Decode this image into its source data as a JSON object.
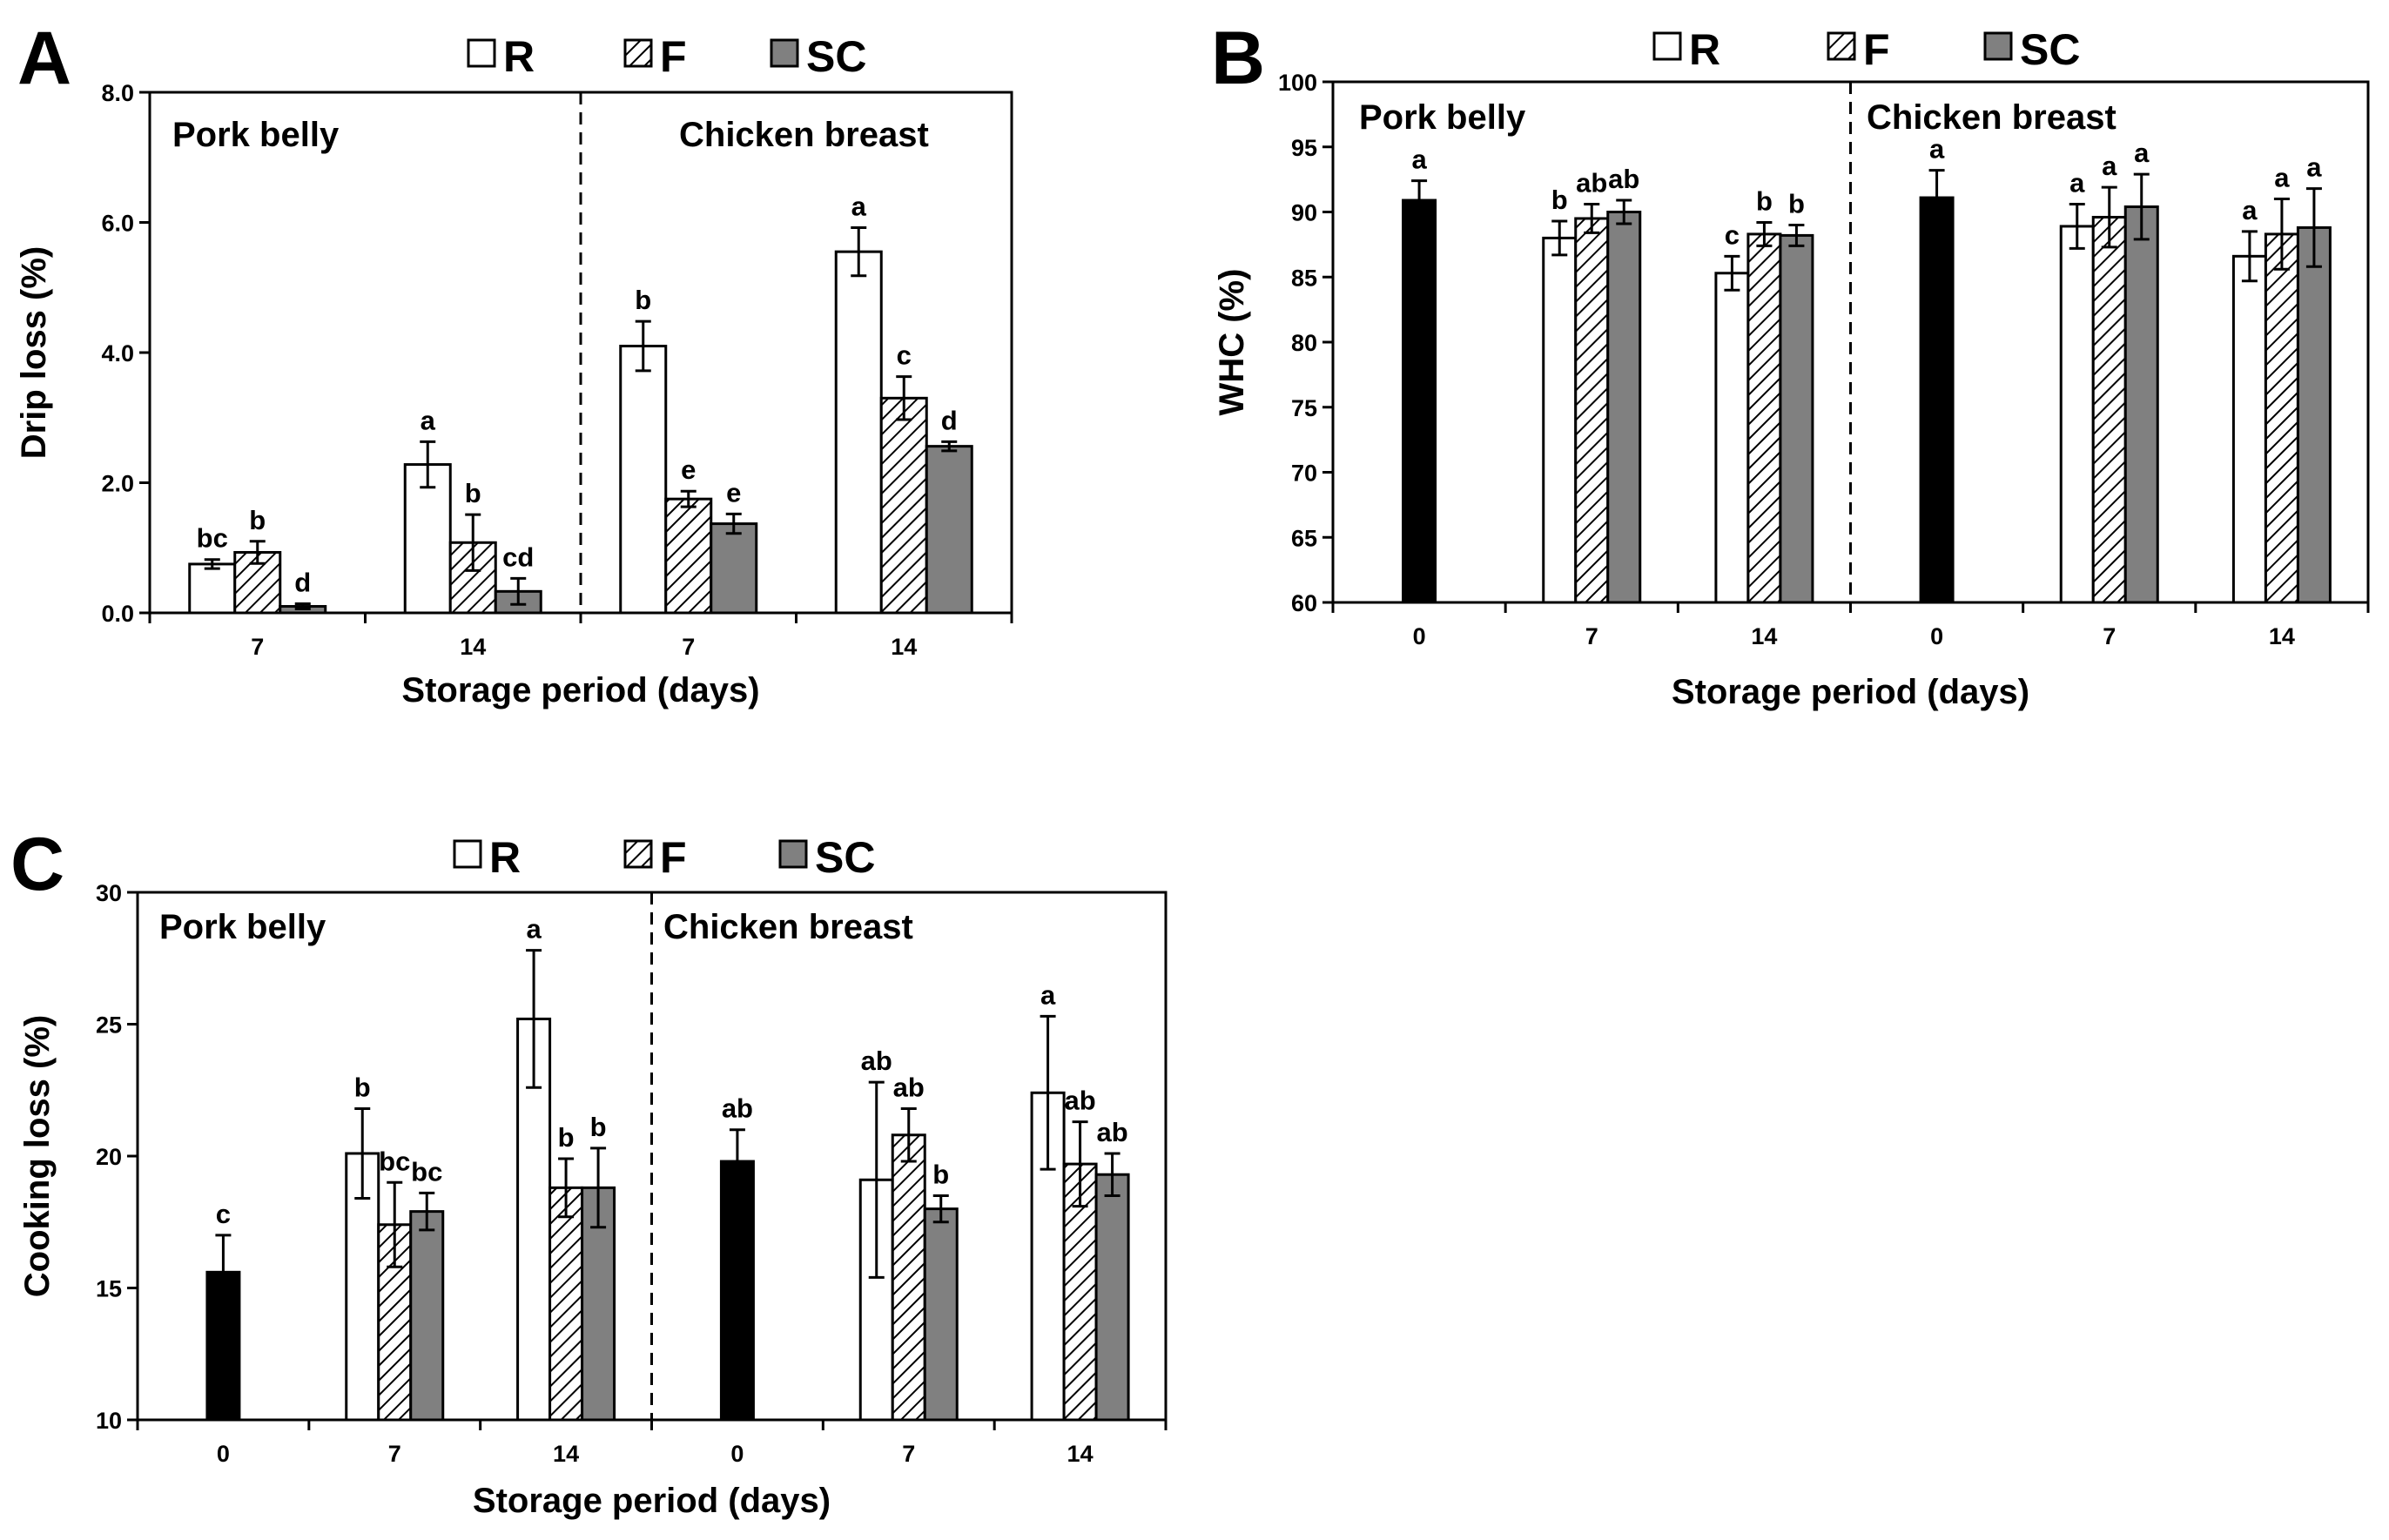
{
  "figure": {
    "colors": {
      "R": "#ffffff",
      "F": "hatch",
      "SC": "#808080",
      "control": "#000000"
    }
  },
  "chart_data": [
    {
      "panel": "A",
      "type": "bar",
      "legend": [
        "R",
        "F",
        "SC"
      ],
      "ylabel": "Drip loss (%)",
      "xlabel": "Storage period (days)",
      "ylim": [
        0,
        8
      ],
      "yticks": [
        0,
        2,
        4,
        6,
        8
      ],
      "ytick_labels": [
        "0.0",
        "2.0",
        "4.0",
        "6.0",
        "8.0"
      ],
      "sections": [
        "Pork belly",
        "Chicken breast"
      ],
      "groups": [
        {
          "section": 0,
          "label": "7",
          "bars": [
            {
              "series": "R",
              "value": 0.75,
              "err": 0.07,
              "letter": "bc"
            },
            {
              "series": "F",
              "value": 0.93,
              "err": 0.17,
              "letter": "b"
            },
            {
              "series": "SC",
              "value": 0.1,
              "err": 0.04,
              "letter": "d"
            }
          ]
        },
        {
          "section": 0,
          "label": "14",
          "bars": [
            {
              "series": "R",
              "value": 2.28,
              "err": 0.35,
              "letter": "a"
            },
            {
              "series": "F",
              "value": 1.08,
              "err": 0.43,
              "letter": "b"
            },
            {
              "series": "SC",
              "value": 0.33,
              "err": 0.2,
              "letter": "cd"
            }
          ]
        },
        {
          "section": 1,
          "label": "7",
          "bars": [
            {
              "series": "R",
              "value": 4.1,
              "err": 0.38,
              "letter": "b"
            },
            {
              "series": "F",
              "value": 1.75,
              "err": 0.12,
              "letter": "e"
            },
            {
              "series": "SC",
              "value": 1.37,
              "err": 0.15,
              "letter": "e"
            }
          ]
        },
        {
          "section": 1,
          "label": "14",
          "bars": [
            {
              "series": "R",
              "value": 5.55,
              "err": 0.37,
              "letter": "a"
            },
            {
              "series": "F",
              "value": 3.3,
              "err": 0.33,
              "letter": "c"
            },
            {
              "series": "SC",
              "value": 2.56,
              "err": 0.07,
              "letter": "d"
            }
          ]
        }
      ]
    },
    {
      "panel": "B",
      "type": "bar",
      "legend": [
        "R",
        "F",
        "SC"
      ],
      "ylabel": "WHC  (%)",
      "xlabel": "Storage period (days)",
      "ylim": [
        60,
        100
      ],
      "yticks": [
        60,
        65,
        70,
        75,
        80,
        85,
        90,
        95,
        100
      ],
      "ytick_labels": [
        "60",
        "65",
        "70",
        "75",
        "80",
        "85",
        "90",
        "95",
        "100"
      ],
      "sections": [
        "Pork belly",
        "Chicken breast"
      ],
      "groups": [
        {
          "section": 0,
          "label": "0",
          "bars": [
            {
              "series": "control",
              "value": 90.9,
              "err": 1.5,
              "letter": "a"
            }
          ]
        },
        {
          "section": 0,
          "label": "7",
          "bars": [
            {
              "series": "R",
              "value": 88.0,
              "err": 1.3,
              "letter": "b"
            },
            {
              "series": "F",
              "value": 89.5,
              "err": 1.1,
              "letter": "ab"
            },
            {
              "series": "SC",
              "value": 90.0,
              "err": 0.9,
              "letter": "ab"
            }
          ]
        },
        {
          "section": 0,
          "label": "14",
          "bars": [
            {
              "series": "R",
              "value": 85.3,
              "err": 1.3,
              "letter": "c"
            },
            {
              "series": "F",
              "value": 88.3,
              "err": 0.9,
              "letter": "b"
            },
            {
              "series": "SC",
              "value": 88.2,
              "err": 0.8,
              "letter": "b"
            }
          ]
        },
        {
          "section": 1,
          "label": "0",
          "bars": [
            {
              "series": "control",
              "value": 91.1,
              "err": 2.1,
              "letter": "a"
            }
          ]
        },
        {
          "section": 1,
          "label": "7",
          "bars": [
            {
              "series": "R",
              "value": 88.9,
              "err": 1.7,
              "letter": "a"
            },
            {
              "series": "F",
              "value": 89.6,
              "err": 2.3,
              "letter": "a"
            },
            {
              "series": "SC",
              "value": 90.4,
              "err": 2.5,
              "letter": "a"
            }
          ]
        },
        {
          "section": 1,
          "label": "14",
          "bars": [
            {
              "series": "R",
              "value": 86.6,
              "err": 1.9,
              "letter": "a"
            },
            {
              "series": "F",
              "value": 88.3,
              "err": 2.7,
              "letter": "a"
            },
            {
              "series": "SC",
              "value": 88.8,
              "err": 3.0,
              "letter": "a"
            }
          ]
        }
      ]
    },
    {
      "panel": "C",
      "type": "bar",
      "legend": [
        "R",
        "F",
        "SC"
      ],
      "ylabel": "Cooking loss (%)",
      "xlabel": "Storage period (days)",
      "ylim": [
        10,
        30
      ],
      "yticks": [
        10,
        15,
        20,
        25,
        30
      ],
      "ytick_labels": [
        "10",
        "15",
        "20",
        "25",
        "30"
      ],
      "sections": [
        "Pork belly",
        "Chicken breast"
      ],
      "groups": [
        {
          "section": 0,
          "label": "0",
          "bars": [
            {
              "series": "control",
              "value": 15.6,
              "err": 1.4,
              "letter": "c"
            }
          ]
        },
        {
          "section": 0,
          "label": "7",
          "bars": [
            {
              "series": "R",
              "value": 20.1,
              "err": 1.7,
              "letter": "b"
            },
            {
              "series": "F",
              "value": 17.4,
              "err": 1.6,
              "letter": "bc"
            },
            {
              "series": "SC",
              "value": 17.9,
              "err": 0.7,
              "letter": "bc"
            }
          ]
        },
        {
          "section": 0,
          "label": "14",
          "bars": [
            {
              "series": "R",
              "value": 25.2,
              "err": 2.6,
              "letter": "a"
            },
            {
              "series": "F",
              "value": 18.8,
              "err": 1.1,
              "letter": "b"
            },
            {
              "series": "SC",
              "value": 18.8,
              "err": 1.5,
              "letter": "b"
            }
          ]
        },
        {
          "section": 1,
          "label": "0",
          "bars": [
            {
              "series": "control",
              "value": 19.8,
              "err": 1.2,
              "letter": "ab"
            }
          ]
        },
        {
          "section": 1,
          "label": "7",
          "bars": [
            {
              "series": "R",
              "value": 19.1,
              "err": 3.7,
              "letter": "ab"
            },
            {
              "series": "F",
              "value": 20.8,
              "err": 1.0,
              "letter": "ab"
            },
            {
              "series": "SC",
              "value": 18.0,
              "err": 0.5,
              "letter": "b"
            }
          ]
        },
        {
          "section": 1,
          "label": "14",
          "bars": [
            {
              "series": "R",
              "value": 22.4,
              "err": 2.9,
              "letter": "a"
            },
            {
              "series": "F",
              "value": 19.7,
              "err": 1.6,
              "letter": "ab"
            },
            {
              "series": "SC",
              "value": 19.3,
              "err": 0.8,
              "letter": "ab"
            }
          ]
        }
      ]
    }
  ]
}
